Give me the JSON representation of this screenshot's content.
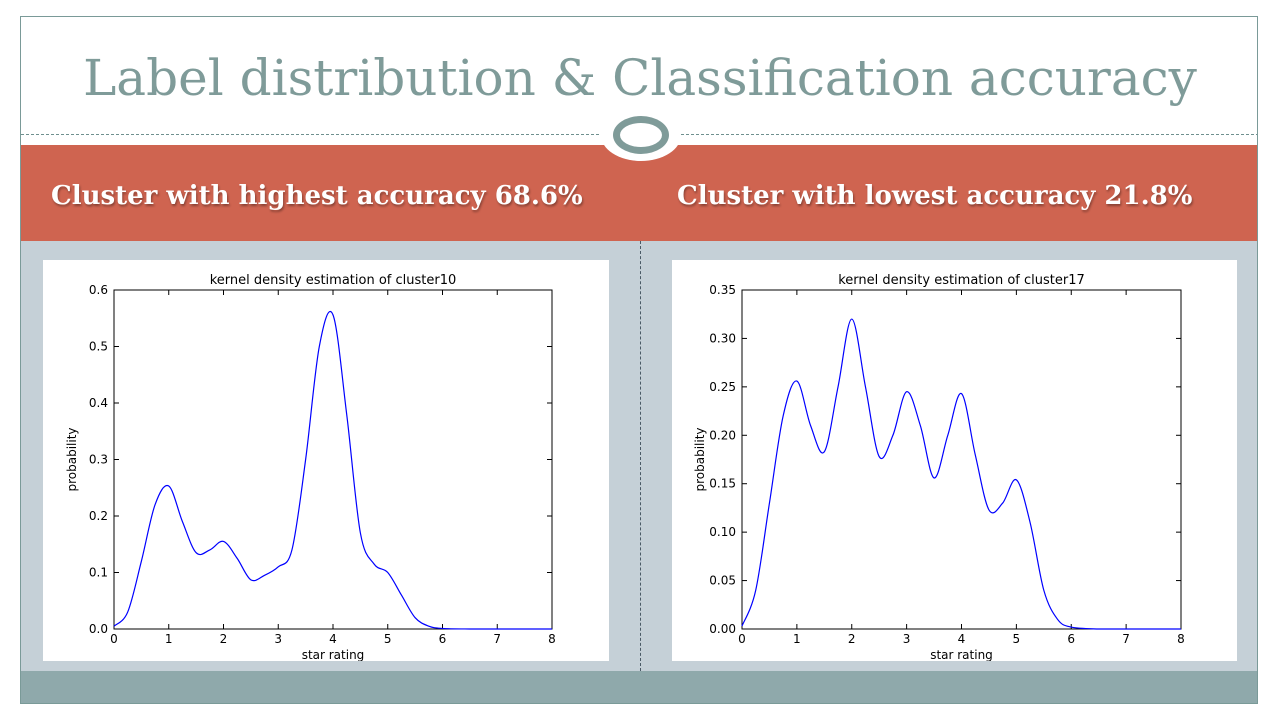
{
  "slide": {
    "title": "Label distribution & Classification accuracy",
    "left_heading": "Cluster with highest accuracy 68.6%",
    "right_heading": "Cluster with lowest accuracy 21.8%"
  },
  "colors": {
    "accent_band": "#cf6450",
    "title_color": "#7f9b99",
    "curve": "#0000ff"
  },
  "chart_data": [
    {
      "type": "line",
      "title": "kernel density estimation of cluster10",
      "xlabel": "star rating",
      "ylabel": "probability",
      "xlim": [
        0,
        8
      ],
      "ylim": [
        0,
        0.6
      ],
      "xticks": [
        "0",
        "1",
        "2",
        "3",
        "4",
        "5",
        "6",
        "7",
        "8"
      ],
      "yticks": [
        "0.0",
        "0.1",
        "0.2",
        "0.3",
        "0.4",
        "0.5",
        "0.6"
      ],
      "grid": false,
      "series": [
        {
          "x": [
            0,
            0.25,
            0.5,
            0.75,
            1.0,
            1.25,
            1.5,
            1.75,
            2.0,
            2.25,
            2.5,
            2.75,
            3.0,
            3.25,
            3.5,
            3.75,
            4.0,
            4.25,
            4.5,
            4.75,
            5.0,
            5.25,
            5.5,
            5.75,
            6.0,
            6.5,
            7.0,
            7.5,
            8.0
          ],
          "values": [
            0.005,
            0.03,
            0.12,
            0.22,
            0.253,
            0.19,
            0.135,
            0.14,
            0.155,
            0.125,
            0.087,
            0.095,
            0.11,
            0.14,
            0.3,
            0.5,
            0.556,
            0.38,
            0.17,
            0.115,
            0.1,
            0.06,
            0.02,
            0.005,
            0.001,
            0.0,
            0.0,
            0.0,
            0.0
          ]
        }
      ]
    },
    {
      "type": "line",
      "title": "kernel density estimation of cluster17",
      "xlabel": "star rating",
      "ylabel": "probability",
      "xlim": [
        0,
        8
      ],
      "ylim": [
        0,
        0.35
      ],
      "xticks": [
        "0",
        "1",
        "2",
        "3",
        "4",
        "5",
        "6",
        "7",
        "8"
      ],
      "yticks": [
        "0.00",
        "0.05",
        "0.10",
        "0.15",
        "0.20",
        "0.25",
        "0.30",
        "0.35"
      ],
      "grid": false,
      "series": [
        {
          "x": [
            0,
            0.25,
            0.5,
            0.75,
            1.0,
            1.25,
            1.5,
            1.75,
            2.0,
            2.25,
            2.5,
            2.75,
            3.0,
            3.25,
            3.5,
            3.75,
            4.0,
            4.25,
            4.5,
            4.75,
            5.0,
            5.25,
            5.5,
            5.75,
            6.0,
            6.5,
            7.0,
            7.5,
            8.0
          ],
          "values": [
            0.003,
            0.04,
            0.13,
            0.22,
            0.256,
            0.21,
            0.183,
            0.25,
            0.32,
            0.25,
            0.178,
            0.2,
            0.245,
            0.21,
            0.156,
            0.2,
            0.243,
            0.18,
            0.123,
            0.13,
            0.154,
            0.11,
            0.04,
            0.01,
            0.002,
            0.0,
            0.0,
            0.0,
            0.0
          ]
        }
      ]
    }
  ]
}
